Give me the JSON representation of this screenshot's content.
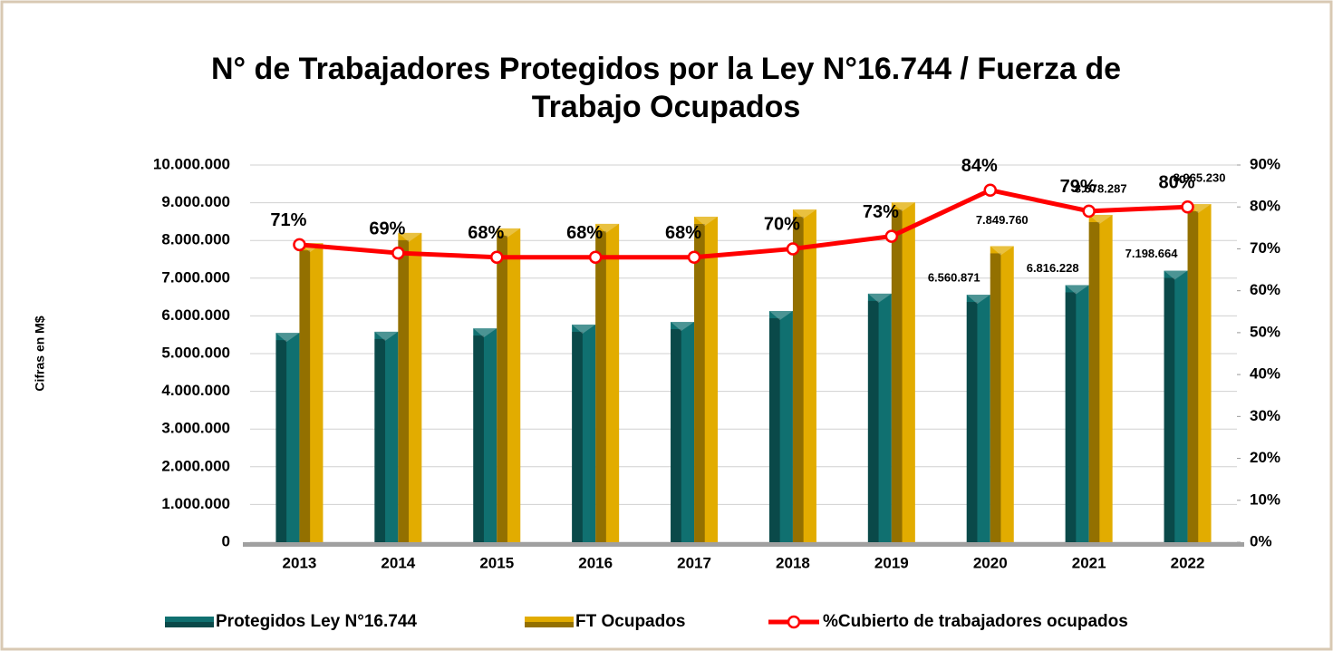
{
  "chart_data": {
    "type": "bar",
    "title": "N° de Trabajadores Protegidos por la Ley N°16.744 / Fuerza de Trabajo Ocupados",
    "ylabel": "Cifras en M$",
    "categories": [
      "2013",
      "2014",
      "2015",
      "2016",
      "2017",
      "2018",
      "2019",
      "2020",
      "2021",
      "2022"
    ],
    "series": [
      {
        "name": "Protegidos Ley N°16.744",
        "color": "#107070",
        "type": "bar",
        "values": [
          5550000,
          5580000,
          5670000,
          5770000,
          5840000,
          6130000,
          6590000,
          6560871,
          6816228,
          7198664
        ],
        "value_labels": [
          null,
          null,
          null,
          null,
          null,
          null,
          null,
          "6.560.871",
          "6.816.228",
          "7.198.664"
        ]
      },
      {
        "name": "FT Ocupados",
        "color": "#e2ac00",
        "type": "bar",
        "values": [
          7930000,
          8200000,
          8320000,
          8440000,
          8630000,
          8820000,
          9010000,
          7849760,
          8678287,
          8965230
        ],
        "value_labels": [
          null,
          null,
          null,
          null,
          null,
          null,
          null,
          "7.849.760",
          "8.678.287",
          "8.965.230"
        ]
      },
      {
        "name": "%Cubierto de trabajadores ocupados",
        "color": "#ff0000",
        "type": "line",
        "axis": "y2",
        "values": [
          71,
          69,
          68,
          68,
          68,
          70,
          73,
          84,
          79,
          80
        ],
        "value_labels": [
          "71%",
          "69%",
          "68%",
          "68%",
          "68%",
          "70%",
          "73%",
          "84%",
          "79%",
          "80%"
        ]
      }
    ],
    "ylim": [
      0,
      10000000
    ],
    "yticks": [
      0,
      {
        "value": 1000000,
        "label": "1.000.000"
      },
      {
        "value": 2000000,
        "label": "2.000.000"
      },
      {
        "value": 3000000,
        "label": "3.000.000"
      },
      {
        "value": 4000000,
        "label": "4.000.000"
      },
      {
        "value": 5000000,
        "label": "5.000.000"
      },
      {
        "value": 6000000,
        "label": "6.000.000"
      },
      {
        "value": 7000000,
        "label": "7.000.000"
      },
      {
        "value": 8000000,
        "label": "8.000.000"
      },
      {
        "value": 9000000,
        "label": "9.000.000"
      },
      {
        "value": 10000000,
        "label": "10.000.000"
      }
    ],
    "y2lim": [
      0,
      90
    ],
    "y2ticks": [
      {
        "value": 0,
        "label": "0%"
      },
      {
        "value": 10,
        "label": "10%"
      },
      {
        "value": 20,
        "label": "20%"
      },
      {
        "value": 30,
        "label": "30%"
      },
      {
        "value": 40,
        "label": "40%"
      },
      {
        "value": 50,
        "label": "50%"
      },
      {
        "value": 60,
        "label": "60%"
      },
      {
        "value": 70,
        "label": "70%"
      },
      {
        "value": 80,
        "label": "80%"
      },
      {
        "value": 90,
        "label": "90%"
      }
    ],
    "grid": true,
    "legend": "bottom"
  }
}
